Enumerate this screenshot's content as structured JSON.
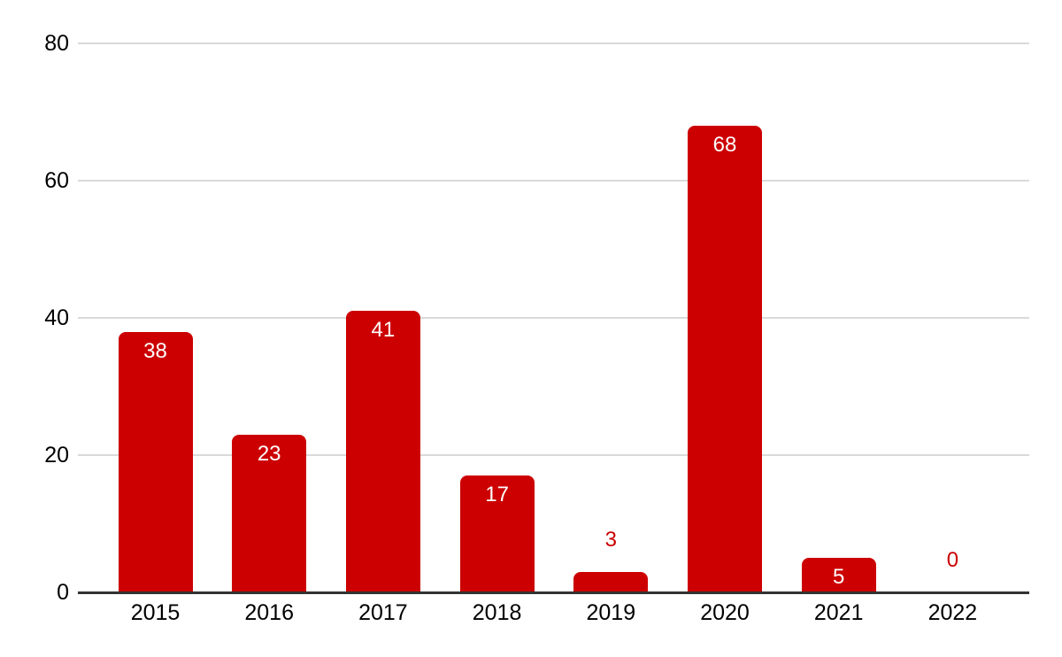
{
  "chart_data": {
    "type": "bar",
    "categories": [
      "2015",
      "2016",
      "2017",
      "2018",
      "2019",
      "2020",
      "2021",
      "2022"
    ],
    "values": [
      38,
      23,
      41,
      17,
      3,
      68,
      5,
      0
    ],
    "title": "",
    "xlabel": "",
    "ylabel": "",
    "ylim": [
      0,
      80
    ],
    "yticks": [
      0,
      20,
      40,
      60,
      80
    ],
    "grid": true,
    "legend_position": "none",
    "bar_color": "#cc0000",
    "value_label_inside_color": "#ffffff",
    "value_label_outside_color": "#cc0000",
    "gridline_color": "#d9d9d9",
    "axis_line_color": "#333333",
    "tick_label_color": "#000000",
    "background_color": "#ffffff"
  }
}
